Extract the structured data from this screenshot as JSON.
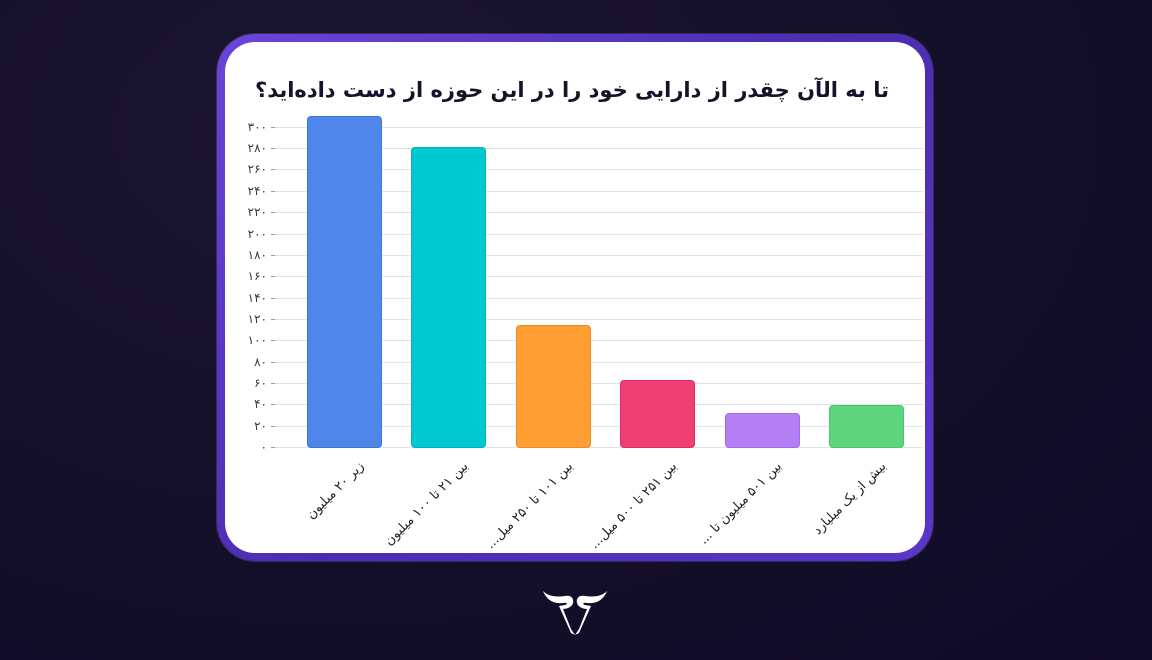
{
  "title": "تا به الآن چقدر از دارایی خود را در این حوزه از دست داده‌اید؟",
  "colors": {
    "background": "#15102a",
    "card_border": "#5a36c8",
    "card_fill": "#ffffff",
    "grid": "#e3e3e3",
    "axis_text": "#3a3a3a"
  },
  "logo": {
    "icon": "brand-logo-icon",
    "color": "#ffffff"
  },
  "chart_data": {
    "type": "bar",
    "title": "تا به الآن چقدر از دارایی خود را در این حوزه از دست داده‌اید؟",
    "xlabel": "",
    "ylabel": "",
    "ylim": [
      0,
      300
    ],
    "grid": true,
    "legend": null,
    "yticks": [
      "۰",
      "۲۰",
      "۴۰",
      "۶۰",
      "۸۰",
      "۱۰۰",
      "۱۲۰",
      "۱۴۰",
      "۱۶۰",
      "۱۸۰",
      "۲۰۰",
      "۲۲۰",
      "۲۴۰",
      "۲۶۰",
      "۲۸۰",
      "۳۰۰"
    ],
    "ytick_values": [
      0,
      20,
      40,
      60,
      80,
      100,
      120,
      140,
      160,
      180,
      200,
      220,
      240,
      260,
      280,
      300
    ],
    "categories": [
      "زیر ۲۰ میلیون",
      "بین ۲۱ تا ۱۰۰ میلیون",
      "بین ۱۰۱ تا ۲۵۰ میل...",
      "بین ۲۵۱ تا ۵۰۰ میل...",
      "بین ۵۰۱ میلیون تا ...",
      "بیش از یک میلیارد"
    ],
    "values": [
      311,
      282,
      115,
      64,
      33,
      40
    ],
    "bar_colors": [
      "#4e86ea",
      "#00c8d0",
      "#ff9f33",
      "#ef4076",
      "#b47ff5",
      "#5fd67e"
    ],
    "bar_border_colors": [
      "#3f74d6",
      "#00b3ba",
      "#f08a20",
      "#dc2d62",
      "#a06be4",
      "#4cc46b"
    ]
  }
}
